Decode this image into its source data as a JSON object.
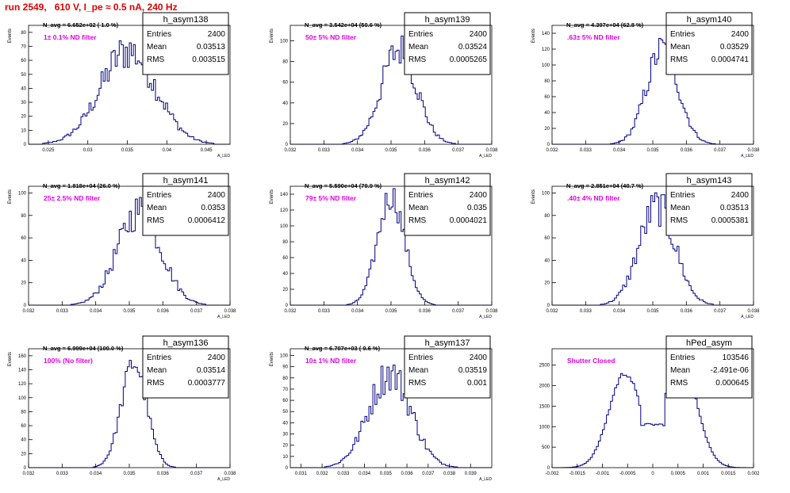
{
  "page_title": "run 2549,   610 V, I_pe ≈ 0.5 nA, 240 Hz",
  "colors": {
    "histogram_line": "#000080",
    "annotation": "#e000e0",
    "title": "#e00000",
    "axis": "#000000"
  },
  "chart_data": [
    {
      "type": "histogram",
      "name": "h_asym138",
      "stats": [
        [
          "Entries",
          "2400"
        ],
        [
          "Mean",
          "0.03513"
        ],
        [
          "RMS",
          "0.003515"
        ]
      ],
      "navg": "N_avg = 6.652e+02 ( 1.0 %)",
      "filter": "1± 0.1% ND filter",
      "ylabel": "Events",
      "xlabel": "A_LED",
      "xlim": [
        0.0225,
        0.048
      ],
      "ylim": [
        0,
        85
      ],
      "xticks": [
        "0.025",
        "0.03",
        "0.035",
        "0.04",
        "0.045"
      ],
      "xtick_values": [
        0.025,
        0.03,
        0.035,
        0.04,
        0.045
      ],
      "yticks": [
        "0",
        "10",
        "20",
        "30",
        "40",
        "50",
        "60",
        "70",
        "80"
      ],
      "ytick_values": [
        0,
        10,
        20,
        30,
        40,
        50,
        60,
        70,
        80
      ],
      "shape": {
        "kind": "gauss",
        "mean": 0.03513,
        "sigma": 0.003515,
        "peak": 67,
        "noise": 0.22
      }
    },
    {
      "type": "histogram",
      "name": "h_asym139",
      "stats": [
        [
          "Entries",
          "2400"
        ],
        [
          "Mean",
          "0.03524"
        ],
        [
          "RMS",
          "0.0005265"
        ]
      ],
      "navg": "N_avg = 3.542e+04 (50.6 %)",
      "filter": "50± 5% ND filter",
      "ylabel": "Events",
      "xlabel": "A_LED",
      "xlim": [
        0.032,
        0.038
      ],
      "ylim": [
        0,
        115
      ],
      "xticks": [
        "0.032",
        "0.033",
        "0.034",
        "0.035",
        "0.036",
        "0.037",
        "0.038"
      ],
      "xtick_values": [
        0.032,
        0.033,
        0.034,
        0.035,
        0.036,
        0.037,
        0.038
      ],
      "yticks": [
        "0",
        "20",
        "40",
        "60",
        "80",
        "100"
      ],
      "ytick_values": [
        0,
        20,
        40,
        60,
        80,
        100
      ],
      "shape": {
        "kind": "gauss",
        "mean": 0.03524,
        "sigma": 0.0005265,
        "peak": 92,
        "noise": 0.2
      }
    },
    {
      "type": "histogram",
      "name": "h_asym140",
      "stats": [
        [
          "Entries",
          "2400"
        ],
        [
          "Mean",
          "0.03529"
        ],
        [
          "RMS",
          "0.0004741"
        ]
      ],
      "navg": "N_avg = 4.397e+04 (62.8 %)",
      "filter": ".63± 5% ND filter",
      "ylabel": "Events",
      "xlabel": "A_LED",
      "xlim": [
        0.032,
        0.038
      ],
      "ylim": [
        0,
        150
      ],
      "xticks": [
        "0.032",
        "0.033",
        "0.034",
        "0.035",
        "0.036",
        "0.037",
        "0.038"
      ],
      "xtick_values": [
        0.032,
        0.033,
        0.034,
        0.035,
        0.036,
        0.037,
        0.038
      ],
      "yticks": [
        "0",
        "20",
        "40",
        "60",
        "80",
        "100",
        "120",
        "140"
      ],
      "ytick_values": [
        0,
        20,
        40,
        60,
        80,
        100,
        120,
        140
      ],
      "shape": {
        "kind": "gauss",
        "mean": 0.03529,
        "sigma": 0.0004741,
        "peak": 120,
        "noise": 0.18
      }
    },
    {
      "type": "histogram",
      "name": "h_asym141",
      "stats": [
        [
          "Entries",
          "2400"
        ],
        [
          "Mean",
          "0.0353"
        ],
        [
          "RMS",
          "0.0006412"
        ]
      ],
      "navg": "N_avg = 1.818e+04 (26.0 %)",
      "filter": "25± 2.5% ND filter",
      "ylabel": "Events",
      "xlabel": "A_LED",
      "xlim": [
        0.032,
        0.038
      ],
      "ylim": [
        0,
        106
      ],
      "xticks": [
        "0.032",
        "0.033",
        "0.034",
        "0.035",
        "0.036",
        "0.037",
        "0.038"
      ],
      "xtick_values": [
        0.032,
        0.033,
        0.034,
        0.035,
        0.036,
        0.037,
        0.038
      ],
      "yticks": [
        "0",
        "20",
        "40",
        "60",
        "80",
        "100"
      ],
      "ytick_values": [
        0,
        20,
        40,
        60,
        80,
        100
      ],
      "shape": {
        "kind": "gauss",
        "mean": 0.0353,
        "sigma": 0.0006412,
        "peak": 84,
        "noise": 0.2
      }
    },
    {
      "type": "histogram",
      "name": "h_asym142",
      "stats": [
        [
          "Entries",
          "2400"
        ],
        [
          "Mean",
          "0.035"
        ],
        [
          "RMS",
          "0.0004021"
        ]
      ],
      "navg": "N_avg = 5.590e+04 (79.9 %)",
      "filter": "79± 5% ND filter",
      "ylabel": "Events",
      "xlabel": "A_LED",
      "xlim": [
        0.032,
        0.038
      ],
      "ylim": [
        0,
        150
      ],
      "xticks": [
        "0.032",
        "0.033",
        "0.034",
        "0.035",
        "0.036",
        "0.037",
        "0.038"
      ],
      "xtick_values": [
        0.032,
        0.033,
        0.034,
        0.035,
        0.036,
        0.037,
        0.038
      ],
      "yticks": [
        "0",
        "20",
        "40",
        "60",
        "80",
        "100",
        "120",
        "140"
      ],
      "ytick_values": [
        0,
        20,
        40,
        60,
        80,
        100,
        120,
        140
      ],
      "shape": {
        "kind": "gauss",
        "mean": 0.035,
        "sigma": 0.0004021,
        "peak": 138,
        "noise": 0.14
      }
    },
    {
      "type": "histogram",
      "name": "h_asym143",
      "stats": [
        [
          "Entries",
          "2400"
        ],
        [
          "Mean",
          "0.03513"
        ],
        [
          "RMS",
          "0.0005381"
        ]
      ],
      "navg": "N_avg = 2.851e+04 (40.7 %)",
      "filter": ".40± 4% ND filter",
      "ylabel": "Events",
      "xlabel": "A_LED",
      "xlim": [
        0.032,
        0.038
      ],
      "ylim": [
        0,
        106
      ],
      "xticks": [
        "0.032",
        "0.033",
        "0.034",
        "0.035",
        "0.036",
        "0.037",
        "0.038"
      ],
      "xtick_values": [
        0.032,
        0.033,
        0.034,
        0.035,
        0.036,
        0.037,
        0.038
      ],
      "yticks": [
        "0",
        "20",
        "40",
        "60",
        "80",
        "100"
      ],
      "ytick_values": [
        0,
        20,
        40,
        60,
        80,
        100
      ],
      "shape": {
        "kind": "gauss",
        "mean": 0.03513,
        "sigma": 0.0005381,
        "peak": 88,
        "noise": 0.2
      }
    },
    {
      "type": "histogram",
      "name": "h_asym136",
      "stats": [
        [
          "Entries",
          "2400"
        ],
        [
          "Mean",
          "0.03514"
        ],
        [
          "RMS",
          "0.0003777"
        ]
      ],
      "navg": "N_avg = 6.999e+04 (100.0 %)",
      "filter": "100% (No filter)",
      "ylabel": "Events",
      "xlabel": "A_LED",
      "xlim": [
        0.032,
        0.038
      ],
      "ylim": [
        0,
        170
      ],
      "xticks": [
        "0.032",
        "0.033",
        "0.034",
        "0.035",
        "0.036",
        "0.037",
        "0.038"
      ],
      "xtick_values": [
        0.032,
        0.033,
        0.034,
        0.035,
        0.036,
        0.037,
        0.038
      ],
      "yticks": [
        "0",
        "20",
        "40",
        "60",
        "80",
        "100",
        "120",
        "140",
        "160"
      ],
      "ytick_values": [
        0,
        20,
        40,
        60,
        80,
        100,
        120,
        140,
        160
      ],
      "shape": {
        "kind": "gauss",
        "mean": 0.03514,
        "sigma": 0.0003777,
        "peak": 150,
        "noise": 0.12
      }
    },
    {
      "type": "histogram",
      "name": "h_asym137",
      "stats": [
        [
          "Entries",
          "2400"
        ],
        [
          "Mean",
          "0.03519"
        ],
        [
          "RMS",
          "0.001"
        ]
      ],
      "navg": "N_avg = 6.707e+03 ( 9.6 %)",
      "filter": "10± 1% ND filter",
      "ylabel": "Events",
      "xlabel": "A_LED",
      "xlim": [
        0.0305,
        0.04
      ],
      "ylim": [
        0,
        106
      ],
      "xticks": [
        "0.031",
        "0.032",
        "0.033",
        "0.034",
        "0.035",
        "0.036",
        "0.037",
        "0.038",
        "0.039"
      ],
      "xtick_values": [
        0.031,
        0.032,
        0.033,
        0.034,
        0.035,
        0.036,
        0.037,
        0.038,
        0.039
      ],
      "yticks": [
        "0",
        "10",
        "20",
        "30",
        "40",
        "50",
        "60",
        "70",
        "80",
        "90",
        "100"
      ],
      "ytick_values": [
        0,
        10,
        20,
        30,
        40,
        50,
        60,
        70,
        80,
        90,
        100
      ],
      "shape": {
        "kind": "gauss",
        "mean": 0.03519,
        "sigma": 0.001,
        "peak": 84,
        "noise": 0.2
      }
    },
    {
      "type": "histogram",
      "name": "hPed_asym",
      "stats": [
        [
          "Entries",
          "103546"
        ],
        [
          "Mean",
          "-2.491e-06"
        ],
        [
          "RMS",
          "0.000645"
        ]
      ],
      "navg": "",
      "filter": "Shutter Closed",
      "ylabel": "",
      "xlabel": "",
      "xlim": [
        -0.002,
        0.002
      ],
      "ylim": [
        0,
        2900
      ],
      "xticks": [
        "-0.002",
        "-0.0015",
        "-0.001",
        "-0.0005",
        "0",
        "0.0005",
        "0.001",
        "0.0015",
        "0.002"
      ],
      "xtick_values": [
        -0.002,
        -0.0015,
        -0.001,
        -0.0005,
        0,
        0.0005,
        0.001,
        0.0015,
        0.002
      ],
      "yticks": [
        "0",
        "500",
        "1000",
        "1500",
        "2000",
        "2500"
      ],
      "ytick_values": [
        0,
        500,
        1000,
        1500,
        2000,
        2500
      ],
      "shape": {
        "kind": "bimodal",
        "mean1": -0.00055,
        "mean2": 0.00055,
        "sigma": 0.00032,
        "peak1": 2300,
        "peak2": 2700,
        "valley": 1050,
        "noise": 0.03
      }
    }
  ]
}
